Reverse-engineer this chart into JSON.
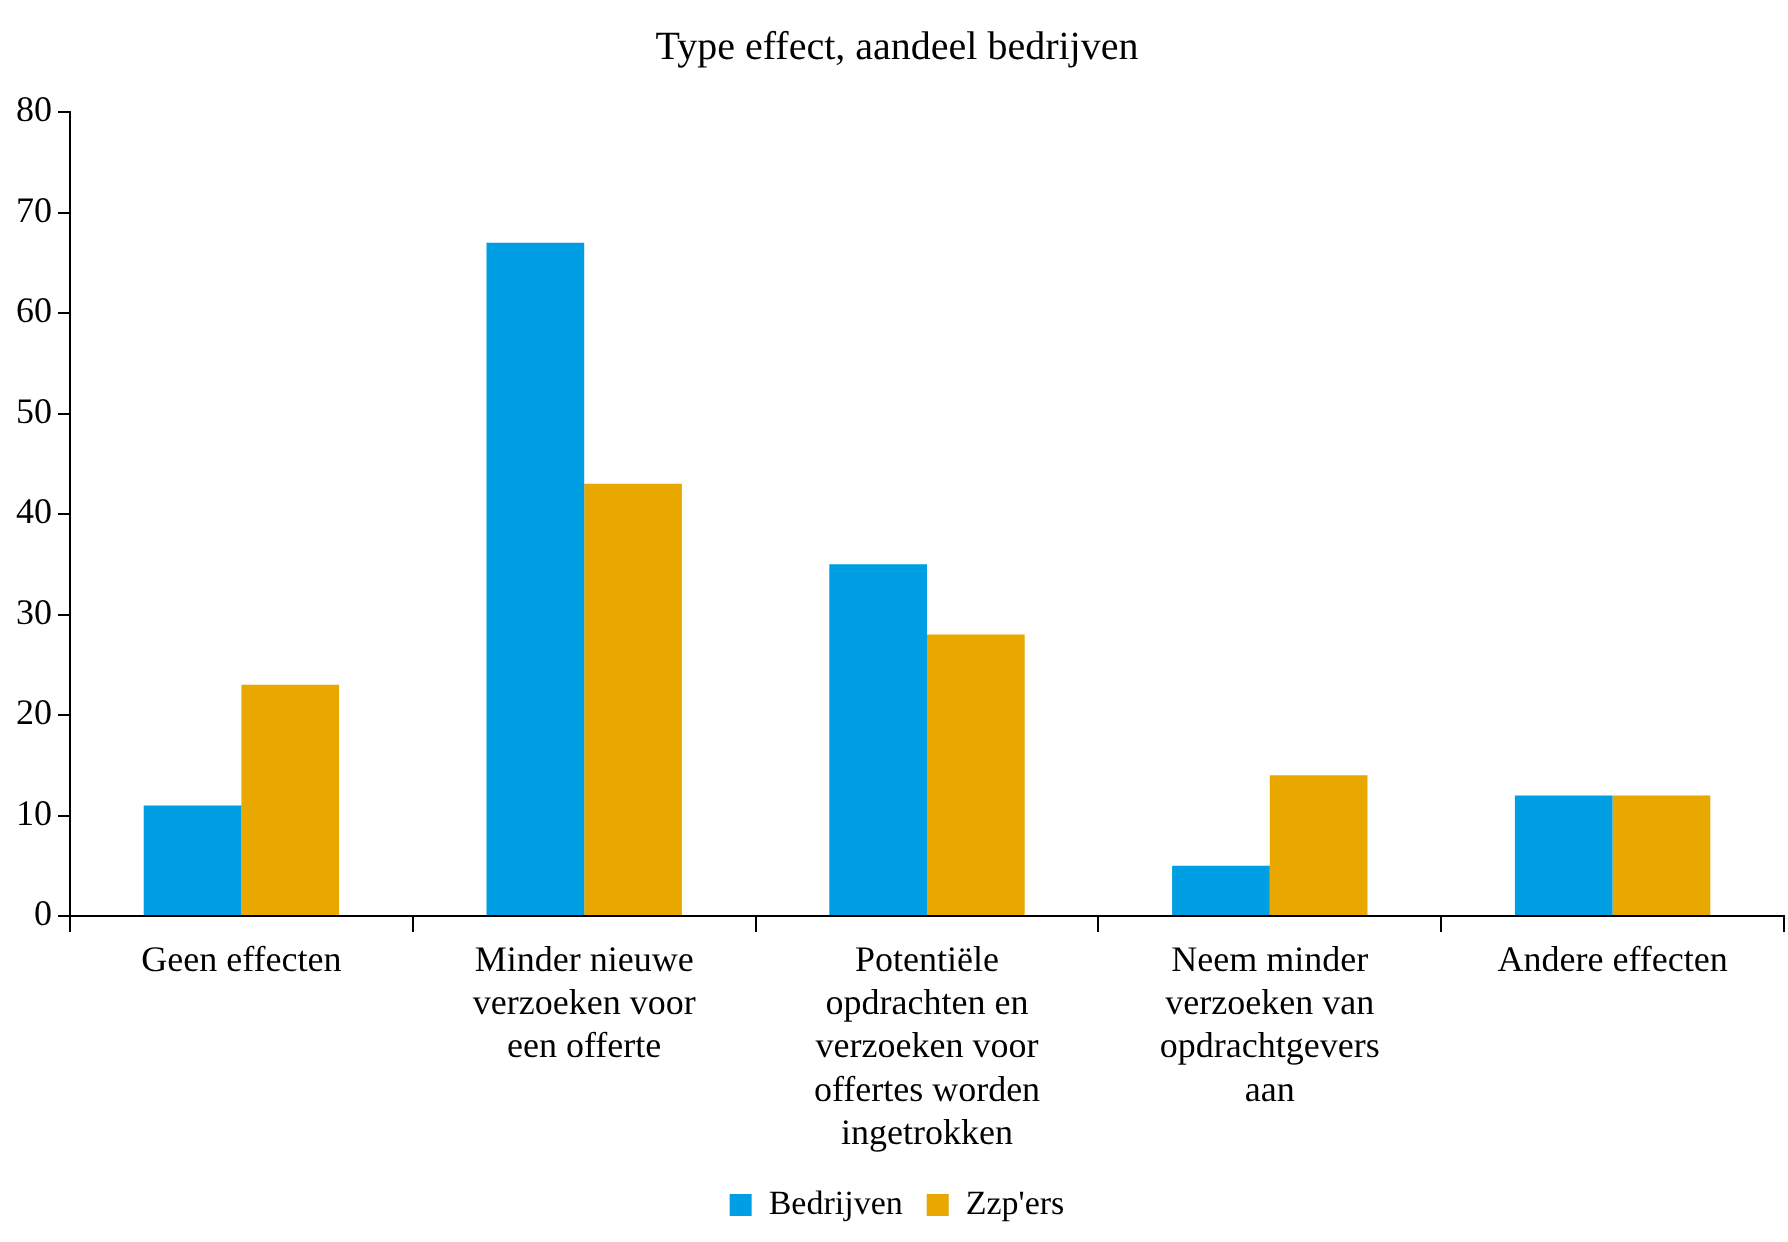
{
  "chart_data": {
    "type": "bar",
    "title": "Type effect, aandeel bedrijven",
    "categories": [
      "Geen effecten",
      "Minder nieuwe verzoeken voor een offerte",
      "Potentiële opdrachten en verzoeken voor offertes worden ingetrokken",
      "Neem minder verzoeken van opdrachtgevers aan",
      "Andere effecten"
    ],
    "series": [
      {
        "name": "Bedrijven",
        "color": "#009fe3",
        "values": [
          11,
          67,
          35,
          5,
          12
        ]
      },
      {
        "name": "Zzp'ers",
        "color": "#e8a800",
        "values": [
          23,
          43,
          28,
          14,
          12
        ]
      }
    ],
    "ylim": [
      0,
      80
    ],
    "yticks": [
      0,
      10,
      20,
      30,
      40,
      50,
      60,
      70,
      80
    ],
    "grid": false,
    "legend": "bottom"
  }
}
